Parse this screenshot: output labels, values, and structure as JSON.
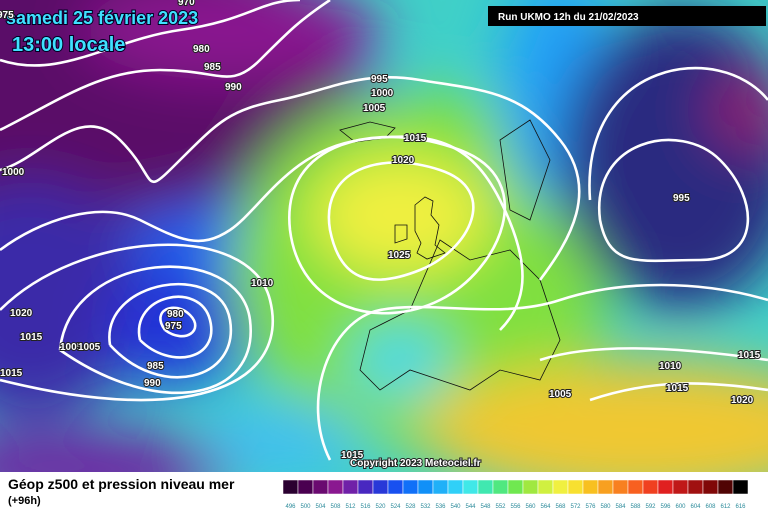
{
  "header": {
    "date": "samedi 25 février 2023",
    "time": "13:00 locale",
    "run": "Run UKMO 12h du 21/02/2023"
  },
  "isobar_labels": [
    970,
    975,
    980,
    985,
    990,
    995,
    1000,
    1005,
    1015,
    1020,
    1000,
    995,
    1025,
    1010,
    1020,
    1015,
    1015,
    1005,
    1005,
    980,
    975,
    985,
    990,
    1010,
    1015,
    1005,
    1015,
    1020,
    1015
  ],
  "footer": {
    "title": "Géop z500 et pression niveau mer",
    "lead": "(+96h)",
    "copyright": "Copyright 2023 Meteociel.fr"
  },
  "legend": [
    {
      "label": 496,
      "color": "#2a0030"
    },
    {
      "label": 500,
      "color": "#4a0050"
    },
    {
      "label": 504,
      "color": "#6a0a70"
    },
    {
      "label": 508,
      "color": "#8a1890"
    },
    {
      "label": 512,
      "color": "#7020a8"
    },
    {
      "label": 516,
      "color": "#4828c0"
    },
    {
      "label": 520,
      "color": "#2838d8"
    },
    {
      "label": 524,
      "color": "#1850f0"
    },
    {
      "label": 528,
      "color": "#1070f8"
    },
    {
      "label": 532,
      "color": "#1090f8"
    },
    {
      "label": 536,
      "color": "#20b0f8"
    },
    {
      "label": 540,
      "color": "#30d0f8"
    },
    {
      "label": 544,
      "color": "#40e8e8"
    },
    {
      "label": 548,
      "color": "#40e8b0"
    },
    {
      "label": 552,
      "color": "#50e880"
    },
    {
      "label": 556,
      "color": "#70e850"
    },
    {
      "label": 560,
      "color": "#a0e840"
    },
    {
      "label": 564,
      "color": "#d0f040"
    },
    {
      "label": 568,
      "color": "#f0f040"
    },
    {
      "label": 572,
      "color": "#f8e030"
    },
    {
      "label": 576,
      "color": "#f8c020"
    },
    {
      "label": 580,
      "color": "#f8a020"
    },
    {
      "label": 584,
      "color": "#f88020"
    },
    {
      "label": 588,
      "color": "#f86020"
    },
    {
      "label": 592,
      "color": "#f04020"
    },
    {
      "label": 596,
      "color": "#e02020"
    },
    {
      "label": 600,
      "color": "#c01818"
    },
    {
      "label": 604,
      "color": "#a01010"
    },
    {
      "label": 608,
      "color": "#800808"
    },
    {
      "label": 612,
      "color": "#500404"
    },
    {
      "label": 616,
      "color": "#000000"
    }
  ]
}
